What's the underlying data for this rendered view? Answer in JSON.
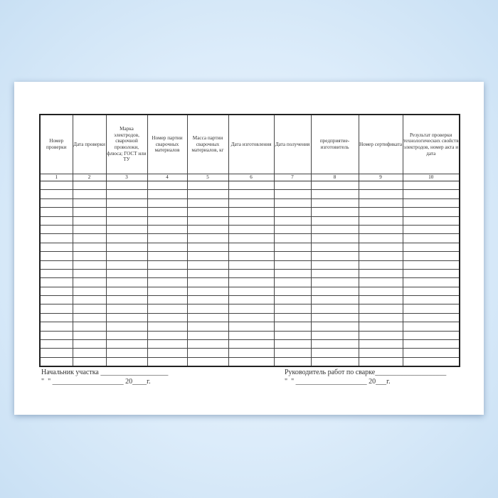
{
  "columns": [
    {
      "header": "Номер проверки",
      "number": "1"
    },
    {
      "header": "Дата проверки",
      "number": "2"
    },
    {
      "header": "Марка электродов, сварочной проволоки, флюса; ГОСТ или ТУ",
      "number": "3"
    },
    {
      "header": "Номер партии сварочных материалов",
      "number": "4"
    },
    {
      "header": "Масса партии сварочных материалов, кг",
      "number": "5"
    },
    {
      "header": "Дата изготовления",
      "number": "6"
    },
    {
      "header": "Дата получения",
      "number": "7"
    },
    {
      "header": "предприятие-изготовитель",
      "number": "8"
    },
    {
      "header": "Номер сертификата",
      "number": "9"
    },
    {
      "header": "Результат проверки технологических свойств электродов, номер акта и дата",
      "number": "10"
    }
  ],
  "footer": {
    "left_sign": "Начальник участка ___________________",
    "left_date": "\"  \" ____________________ 20____г.",
    "right_sign": "Руководитель работ по сварке____________________",
    "right_date": "\"  \" ____________________ 20___г."
  }
}
